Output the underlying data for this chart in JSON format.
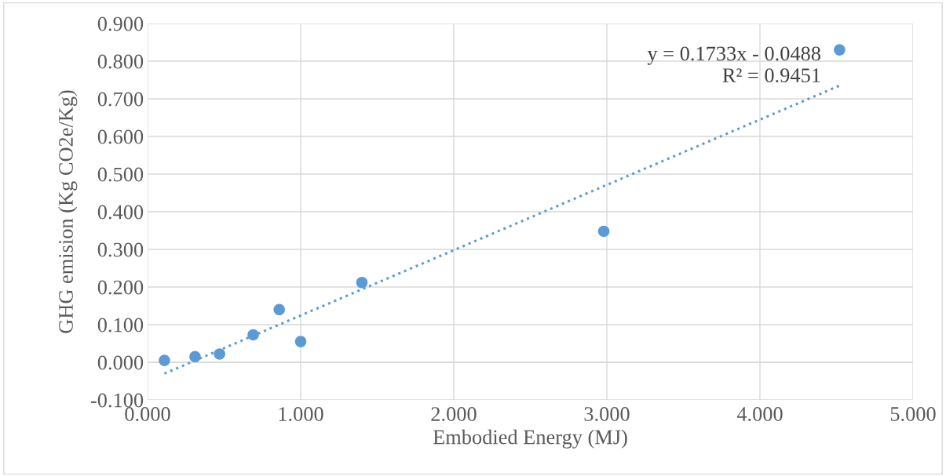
{
  "chart_data": {
    "type": "scatter",
    "xlabel": "Embodied Energy (MJ)",
    "ylabel": "GHG emision (Kg CO2e/Kg)",
    "x": [
      0.11,
      0.31,
      0.47,
      0.69,
      0.86,
      1.0,
      1.4,
      2.98,
      4.52
    ],
    "series": [
      {
        "color": "#5b9bd5",
        "marker": "circle",
        "values": [
          0.005,
          0.015,
          0.022,
          0.073,
          0.14,
          0.055,
          0.212,
          0.348,
          0.83
        ]
      },
      {
        "type": "line",
        "color": "#5b9bd5",
        "line_style": "dotted",
        "marker": "none",
        "x": [
          0.11,
          4.52
        ],
        "values": [
          -0.03,
          0.735
        ]
      }
    ],
    "xlim": [
      0,
      5
    ],
    "ylim": [
      -0.1,
      0.9
    ],
    "xticks": [
      {
        "value": 0,
        "label": "0.000"
      },
      {
        "value": 1,
        "label": "1.000"
      },
      {
        "value": 2,
        "label": "2.000"
      },
      {
        "value": 3,
        "label": "3.000"
      },
      {
        "value": 4,
        "label": "4.000"
      },
      {
        "value": 5,
        "label": "5.000"
      }
    ],
    "yticks": [
      {
        "value": -0.1,
        "label": "-0.100"
      },
      {
        "value": 0,
        "label": "0.000"
      },
      {
        "value": 0.1,
        "label": "0.100"
      },
      {
        "value": 0.2,
        "label": "0.200"
      },
      {
        "value": 0.3,
        "label": "0.300"
      },
      {
        "value": 0.4,
        "label": "0.400"
      },
      {
        "value": 0.5,
        "label": "0.500"
      },
      {
        "value": 0.6,
        "label": "0.600"
      },
      {
        "value": 0.7,
        "label": "0.700"
      },
      {
        "value": 0.8,
        "label": "0.800"
      },
      {
        "value": 0.9,
        "label": "0.900"
      }
    ],
    "grid": true,
    "annotations": [
      "y = 0.1733x - 0.0488\nR² = 0.9451"
    ]
  }
}
